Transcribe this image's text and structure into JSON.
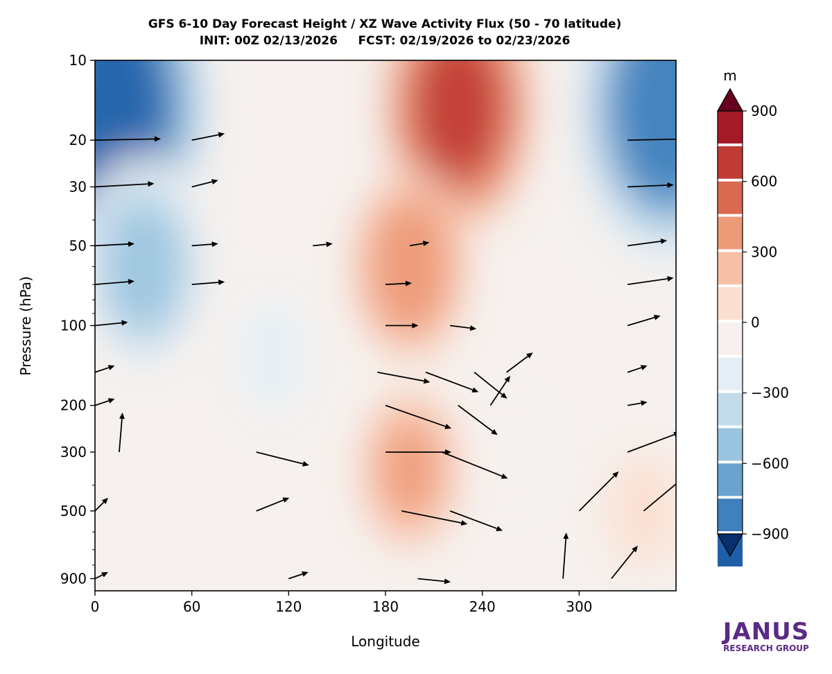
{
  "chart_data": {
    "type": "heatmap",
    "subtype": "filled-contour with vector arrows",
    "title_line1": "GFS 6-10 Day Forecast Height / XZ Wave Activity Flux (50 - 70 latitude)",
    "title_line2": "INIT: 00Z 02/13/2026     FCST: 02/19/2026 to 02/23/2026",
    "xlabel": "Longitude",
    "ylabel": "Pressure (hPa)",
    "x_ticks": [
      0,
      60,
      120,
      180,
      240,
      300
    ],
    "xlim": [
      0,
      360
    ],
    "y_ticks": [
      10,
      20,
      30,
      50,
      100,
      200,
      300,
      500,
      900
    ],
    "ylim": [
      1000,
      10
    ],
    "y_scale": "log",
    "colorbar": {
      "unit_label": "m",
      "ticks": [
        900,
        600,
        300,
        0,
        -300,
        -600,
        -900
      ],
      "tick_labels": [
        "900",
        "600",
        "300",
        "0",
        "−300",
        "−600",
        "−900"
      ],
      "levels": [
        -1050,
        -900,
        -750,
        -600,
        -450,
        -300,
        -150,
        0,
        150,
        300,
        450,
        600,
        750,
        900,
        1050
      ],
      "colors": [
        "#08306b",
        "#1f5fa8",
        "#3f80bd",
        "#6aa3cf",
        "#9ac4df",
        "#c4dbeb",
        "#e3eef5",
        "#f6f1ee",
        "#fbe0d2",
        "#f7c0a6",
        "#ed9a78",
        "#d96a50",
        "#c03a36",
        "#a41a26",
        "#67001f"
      ],
      "extend": "both"
    },
    "height_anomaly_field": {
      "description": "Centers of the height anomaly (m) across longitude and pressure",
      "features": [
        {
          "name": "negative anomaly",
          "lon": 10,
          "p": 15,
          "value": -1000
        },
        {
          "name": "negative anomaly",
          "lon": 355,
          "p": 15,
          "value": -900
        },
        {
          "name": "negative anomaly",
          "lon": 30,
          "p": 60,
          "value": -550
        },
        {
          "name": "negative anomaly",
          "lon": 110,
          "p": 130,
          "value": -250
        },
        {
          "name": "negative anomaly",
          "lon": 260,
          "p": 300,
          "value": -80
        },
        {
          "name": "positive anomaly",
          "lon": 225,
          "p": 15,
          "value": 620
        },
        {
          "name": "positive anomaly",
          "lon": 195,
          "p": 60,
          "value": 420
        },
        {
          "name": "positive anomaly",
          "lon": 195,
          "p": 350,
          "value": 300
        },
        {
          "name": "positive anomaly",
          "lon": 340,
          "p": 500,
          "value": 100
        }
      ]
    },
    "flux_vectors": [
      {
        "lon": 0,
        "p": 20,
        "u": 1.0,
        "v": 0.02
      },
      {
        "lon": 60,
        "p": 20,
        "u": 0.5,
        "v": 0.1
      },
      {
        "lon": 330,
        "p": 20,
        "u": 1.0,
        "v": 0.02
      },
      {
        "lon": 0,
        "p": 30,
        "u": 0.9,
        "v": 0.05
      },
      {
        "lon": 60,
        "p": 30,
        "u": 0.4,
        "v": 0.1
      },
      {
        "lon": 330,
        "p": 30,
        "u": 0.7,
        "v": 0.03
      },
      {
        "lon": 0,
        "p": 50,
        "u": 0.6,
        "v": 0.03
      },
      {
        "lon": 60,
        "p": 50,
        "u": 0.4,
        "v": 0.03
      },
      {
        "lon": 135,
        "p": 50,
        "u": 0.3,
        "v": 0.03
      },
      {
        "lon": 195,
        "p": 50,
        "u": 0.3,
        "v": 0.05
      },
      {
        "lon": 330,
        "p": 50,
        "u": 0.6,
        "v": 0.08
      },
      {
        "lon": 0,
        "p": 70,
        "u": 0.6,
        "v": 0.05
      },
      {
        "lon": 60,
        "p": 70,
        "u": 0.5,
        "v": 0.04
      },
      {
        "lon": 180,
        "p": 70,
        "u": 0.4,
        "v": 0.02
      },
      {
        "lon": 330,
        "p": 70,
        "u": 0.7,
        "v": 0.1
      },
      {
        "lon": 0,
        "p": 100,
        "u": 0.5,
        "v": 0.05
      },
      {
        "lon": 180,
        "p": 100,
        "u": 0.5,
        "v": 0.0
      },
      {
        "lon": 220,
        "p": 100,
        "u": 0.4,
        "v": -0.05
      },
      {
        "lon": 330,
        "p": 100,
        "u": 0.5,
        "v": 0.15
      },
      {
        "lon": 0,
        "p": 150,
        "u": 0.3,
        "v": 0.1
      },
      {
        "lon": 175,
        "p": 150,
        "u": 0.8,
        "v": -0.15
      },
      {
        "lon": 205,
        "p": 150,
        "u": 0.8,
        "v": -0.3
      },
      {
        "lon": 235,
        "p": 150,
        "u": 0.5,
        "v": -0.4
      },
      {
        "lon": 255,
        "p": 150,
        "u": 0.4,
        "v": 0.3
      },
      {
        "lon": 330,
        "p": 150,
        "u": 0.3,
        "v": 0.1
      },
      {
        "lon": 0,
        "p": 200,
        "u": 0.3,
        "v": 0.1
      },
      {
        "lon": 180,
        "p": 200,
        "u": 1.0,
        "v": -0.35
      },
      {
        "lon": 225,
        "p": 200,
        "u": 0.6,
        "v": -0.45
      },
      {
        "lon": 245,
        "p": 200,
        "u": 0.3,
        "v": 0.45
      },
      {
        "lon": 330,
        "p": 200,
        "u": 0.3,
        "v": 0.05
      },
      {
        "lon": 15,
        "p": 300,
        "u": 0.05,
        "v": 0.6
      },
      {
        "lon": 100,
        "p": 300,
        "u": 0.8,
        "v": -0.2
      },
      {
        "lon": 180,
        "p": 300,
        "u": 1.0,
        "v": 0.0
      },
      {
        "lon": 215,
        "p": 300,
        "u": 1.0,
        "v": -0.4
      },
      {
        "lon": 330,
        "p": 300,
        "u": 0.8,
        "v": 0.3
      },
      {
        "lon": 0,
        "p": 500,
        "u": 0.2,
        "v": 0.2
      },
      {
        "lon": 100,
        "p": 500,
        "u": 0.5,
        "v": 0.2
      },
      {
        "lon": 190,
        "p": 500,
        "u": 1.0,
        "v": -0.2
      },
      {
        "lon": 220,
        "p": 500,
        "u": 0.8,
        "v": -0.3
      },
      {
        "lon": 300,
        "p": 500,
        "u": 0.6,
        "v": 0.6
      },
      {
        "lon": 340,
        "p": 500,
        "u": 0.6,
        "v": 0.5
      },
      {
        "lon": 0,
        "p": 900,
        "u": 0.2,
        "v": 0.1
      },
      {
        "lon": 120,
        "p": 900,
        "u": 0.3,
        "v": 0.1
      },
      {
        "lon": 200,
        "p": 900,
        "u": 0.5,
        "v": -0.05
      },
      {
        "lon": 290,
        "p": 900,
        "u": 0.05,
        "v": 0.7
      },
      {
        "lon": 320,
        "p": 900,
        "u": 0.4,
        "v": 0.5
      }
    ]
  },
  "logo": {
    "name": "JANUS",
    "subtitle": "RESEARCH GROUP",
    "color": "#5b2a86"
  }
}
